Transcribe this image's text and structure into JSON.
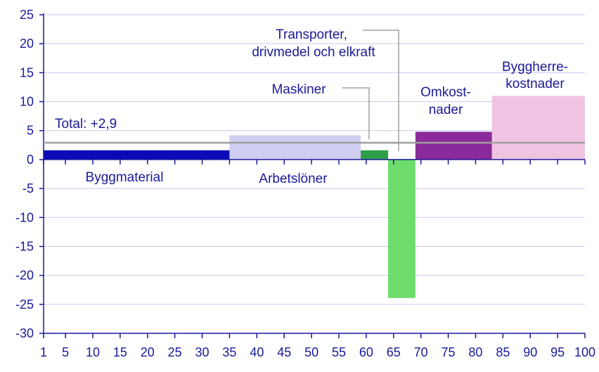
{
  "chart_data": {
    "type": "bar",
    "title": "",
    "xlabel": "",
    "ylabel": "",
    "xlim": [
      1,
      100
    ],
    "ylim": [
      -30,
      25
    ],
    "x_ticks": [
      1,
      5,
      10,
      15,
      20,
      25,
      30,
      35,
      40,
      45,
      50,
      55,
      60,
      65,
      70,
      75,
      80,
      85,
      90,
      95,
      100
    ],
    "y_ticks": [
      25,
      20,
      15,
      10,
      5,
      0,
      -5,
      -10,
      -15,
      -20,
      -25,
      -30
    ],
    "grid": true,
    "bars": [
      {
        "label": "Byggmaterial",
        "x_start": 1,
        "x_end": 35,
        "value": 1.6,
        "color": "#0a0ab8"
      },
      {
        "label": "Arbetslöner",
        "x_start": 35,
        "x_end": 59,
        "value": 4.2,
        "color": "#cfcdf0"
      },
      {
        "label": "Maskiner",
        "x_start": 59,
        "x_end": 64,
        "value": 1.6,
        "color": "#2e9e48"
      },
      {
        "label": "Transporter, drivmedel och elkraft",
        "x_start": 64,
        "x_end": 69,
        "value": -23.9,
        "color": "#6ddc6a"
      },
      {
        "label": "Omkostnader",
        "x_start": 69,
        "x_end": 83,
        "value": 4.8,
        "color": "#8b2a9a"
      },
      {
        "label": "Byggherrekostnader",
        "x_start": 83,
        "x_end": 100,
        "value": 11.0,
        "color": "#f0c3e3"
      }
    ],
    "total": {
      "label": "Total: +2,9",
      "value": 2.9,
      "color": "#a0a0a0"
    },
    "annotations": {
      "byggmaterial": "Byggmaterial",
      "arbetsloner": "Arbetslöner",
      "maskiner": "Maskiner",
      "transporter_line1": "Transporter,",
      "transporter_line2": "drivmedel och elkraft",
      "omkost_line1": "Omkost-",
      "omkost_line2": "nader",
      "byggherre_line1": "Byggherre-",
      "byggherre_line2": "kostnader"
    },
    "colors": {
      "axis": "#1a1a99",
      "grid": "#c8c8ee",
      "leader": "#a0a0a0"
    }
  }
}
